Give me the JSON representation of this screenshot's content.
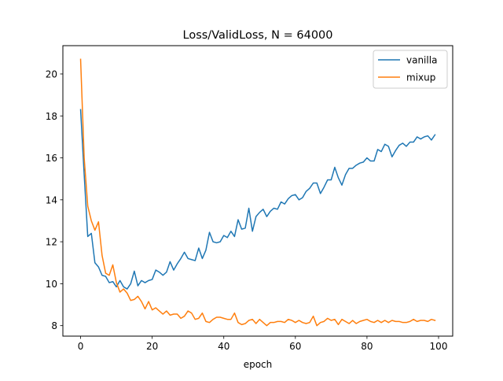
{
  "chart_data": {
    "type": "line",
    "title": "Loss/ValidLoss, N = 64000",
    "xlabel": "epoch",
    "ylabel": "",
    "xlim": [
      -4.95,
      103.95
    ],
    "ylim": [
      7.5,
      21.35
    ],
    "xticks": [
      0,
      20,
      40,
      60,
      80,
      100
    ],
    "yticks": [
      8,
      10,
      12,
      14,
      16,
      18,
      20
    ],
    "grid": false,
    "legend_position": "top-right",
    "x": [
      0,
      1,
      2,
      3,
      4,
      5,
      6,
      7,
      8,
      9,
      10,
      11,
      12,
      13,
      14,
      15,
      16,
      17,
      18,
      19,
      20,
      21,
      22,
      23,
      24,
      25,
      26,
      27,
      28,
      29,
      30,
      31,
      32,
      33,
      34,
      35,
      36,
      37,
      38,
      39,
      40,
      41,
      42,
      43,
      44,
      45,
      46,
      47,
      48,
      49,
      50,
      51,
      52,
      53,
      54,
      55,
      56,
      57,
      58,
      59,
      60,
      61,
      62,
      63,
      64,
      65,
      66,
      67,
      68,
      69,
      70,
      71,
      72,
      73,
      74,
      75,
      76,
      77,
      78,
      79,
      80,
      81,
      82,
      83,
      84,
      85,
      86,
      87,
      88,
      89,
      90,
      91,
      92,
      93,
      94,
      95,
      96,
      97,
      98,
      99
    ],
    "series": [
      {
        "name": "vanilla",
        "color": "#1f77b4",
        "values": [
          18.3,
          15.2,
          12.25,
          12.4,
          11.0,
          10.8,
          10.4,
          10.35,
          10.05,
          10.1,
          9.85,
          10.15,
          9.85,
          9.75,
          10.0,
          10.6,
          9.9,
          10.15,
          10.05,
          10.15,
          10.2,
          10.65,
          10.55,
          10.4,
          10.55,
          11.05,
          10.65,
          10.95,
          11.2,
          11.5,
          11.2,
          11.15,
          11.1,
          11.7,
          11.2,
          11.6,
          12.45,
          12.0,
          11.95,
          12.0,
          12.3,
          12.2,
          12.5,
          12.25,
          13.05,
          12.6,
          12.65,
          13.6,
          12.5,
          13.2,
          13.4,
          13.55,
          13.2,
          13.45,
          13.6,
          13.55,
          13.9,
          13.8,
          14.05,
          14.2,
          14.25,
          14.0,
          14.1,
          14.4,
          14.55,
          14.8,
          14.8,
          14.3,
          14.6,
          14.95,
          14.95,
          15.55,
          15.05,
          14.7,
          15.2,
          15.5,
          15.5,
          15.65,
          15.75,
          15.8,
          16.0,
          15.85,
          15.85,
          16.4,
          16.3,
          16.65,
          16.55,
          16.05,
          16.35,
          16.6,
          16.7,
          16.55,
          16.75,
          16.75,
          17.0,
          16.9,
          17.0,
          17.05,
          16.85,
          17.1
        ]
      },
      {
        "name": "mixup",
        "color": "#ff7f0e",
        "values": [
          20.7,
          16.0,
          13.7,
          13.0,
          12.55,
          12.95,
          11.35,
          10.5,
          10.4,
          10.9,
          10.05,
          9.6,
          9.75,
          9.55,
          9.2,
          9.25,
          9.4,
          9.15,
          8.8,
          9.15,
          8.75,
          8.85,
          8.7,
          8.55,
          8.7,
          8.5,
          8.55,
          8.55,
          8.35,
          8.45,
          8.7,
          8.6,
          8.3,
          8.35,
          8.6,
          8.2,
          8.15,
          8.3,
          8.4,
          8.4,
          8.35,
          8.3,
          8.3,
          8.6,
          8.15,
          8.05,
          8.1,
          8.25,
          8.3,
          8.1,
          8.3,
          8.15,
          8.0,
          8.15,
          8.15,
          8.2,
          8.2,
          8.15,
          8.3,
          8.25,
          8.15,
          8.25,
          8.15,
          8.1,
          8.15,
          8.45,
          8.0,
          8.15,
          8.2,
          8.35,
          8.25,
          8.3,
          8.05,
          8.3,
          8.2,
          8.1,
          8.25,
          8.1,
          8.2,
          8.25,
          8.3,
          8.2,
          8.15,
          8.25,
          8.15,
          8.25,
          8.15,
          8.25,
          8.2,
          8.2,
          8.15,
          8.15,
          8.2,
          8.3,
          8.2,
          8.25,
          8.25,
          8.2,
          8.3,
          8.25
        ]
      }
    ]
  }
}
